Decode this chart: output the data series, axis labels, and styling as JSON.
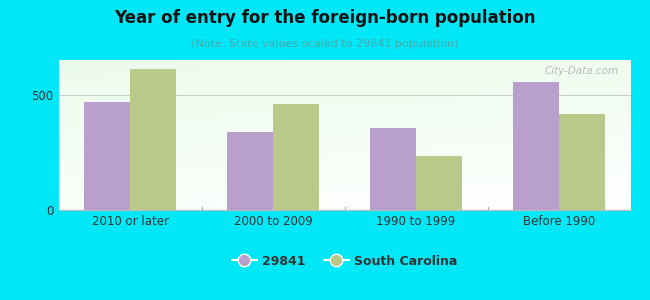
{
  "title": "Year of entry for the foreign-born population",
  "subtitle": "(Note: State values scaled to 29841 population)",
  "categories": [
    "2010 or later",
    "2000 to 2009",
    "1990 to 1999",
    "Before 1990"
  ],
  "values_29841": [
    470,
    340,
    355,
    555
  ],
  "values_sc": [
    610,
    460,
    235,
    415
  ],
  "bar_color_29841": "#b89fcc",
  "bar_color_sc": "#b8c98a",
  "background_outer": "#00e8f8",
  "ylim": [
    0,
    650
  ],
  "yticks": [
    0,
    500
  ],
  "legend_label_1": "29841",
  "legend_label_2": "South Carolina",
  "watermark": "City-Data.com",
  "bar_width": 0.32,
  "title_color": "#111111",
  "subtitle_color": "#44aaaa",
  "tick_color": "#333333"
}
